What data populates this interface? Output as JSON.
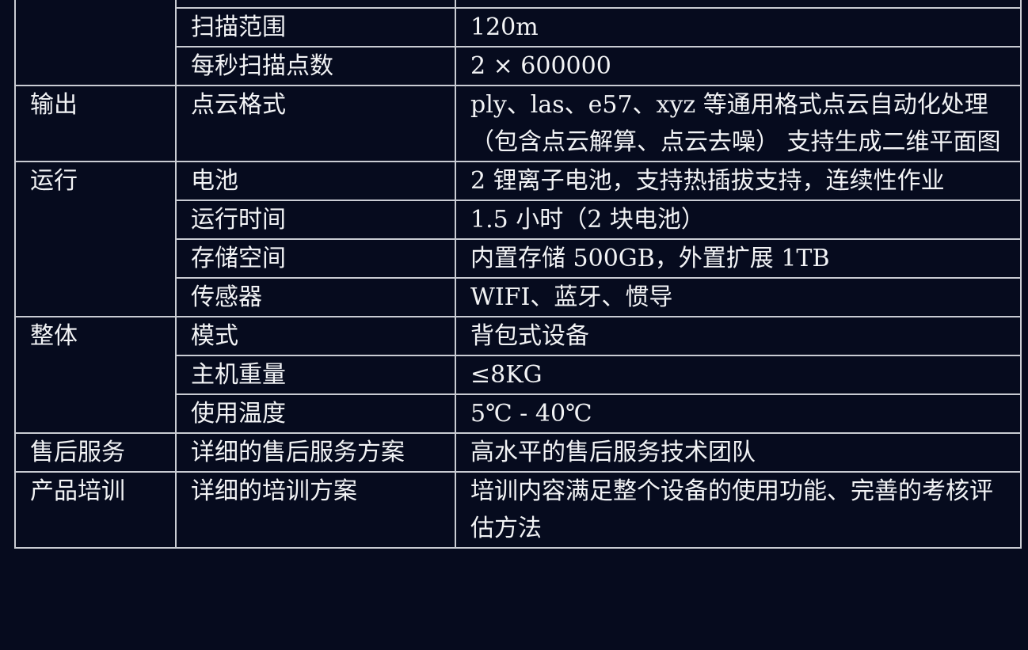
{
  "colors": {
    "background": "#060b1e",
    "border": "#c9ccd3",
    "text": "#f2f3f5"
  },
  "rows": [
    {
      "spec": "扫描范围",
      "value": "120m"
    },
    {
      "spec": "每秒扫描点数",
      "value": "2 × 600000"
    },
    {
      "category": "输出",
      "spec": "点云格式",
      "value": "ply、las、e57、xyz 等通用格式点云自动化处理（包含点云解算、点云去噪） 支持生成二维平面图"
    },
    {
      "category": "运行",
      "spec": "电池",
      "value": "2 锂离子电池，支持热插拔支持，连续性作业"
    },
    {
      "spec": "运行时间",
      "value": "1.5 小时（2 块电池）"
    },
    {
      "spec": "存储空间",
      "value": "内置存储 500GB，外置扩展 1TB"
    },
    {
      "spec": "传感器",
      "value": "WIFI、蓝牙、惯导"
    },
    {
      "category": "整体",
      "spec": "模式",
      "value": "背包式设备"
    },
    {
      "spec": "主机重量",
      "value": "≤8KG"
    },
    {
      "spec": "使用温度",
      "value": "5℃ - 40℃"
    },
    {
      "category": "售后服务",
      "spec": "详细的售后服务方案",
      "value": "高水平的售后服务技术团队"
    },
    {
      "category": "产品培训",
      "spec": "详细的培训方案",
      "value": "培训内容满足整个设备的使用功能、完善的考核评估方法"
    }
  ]
}
